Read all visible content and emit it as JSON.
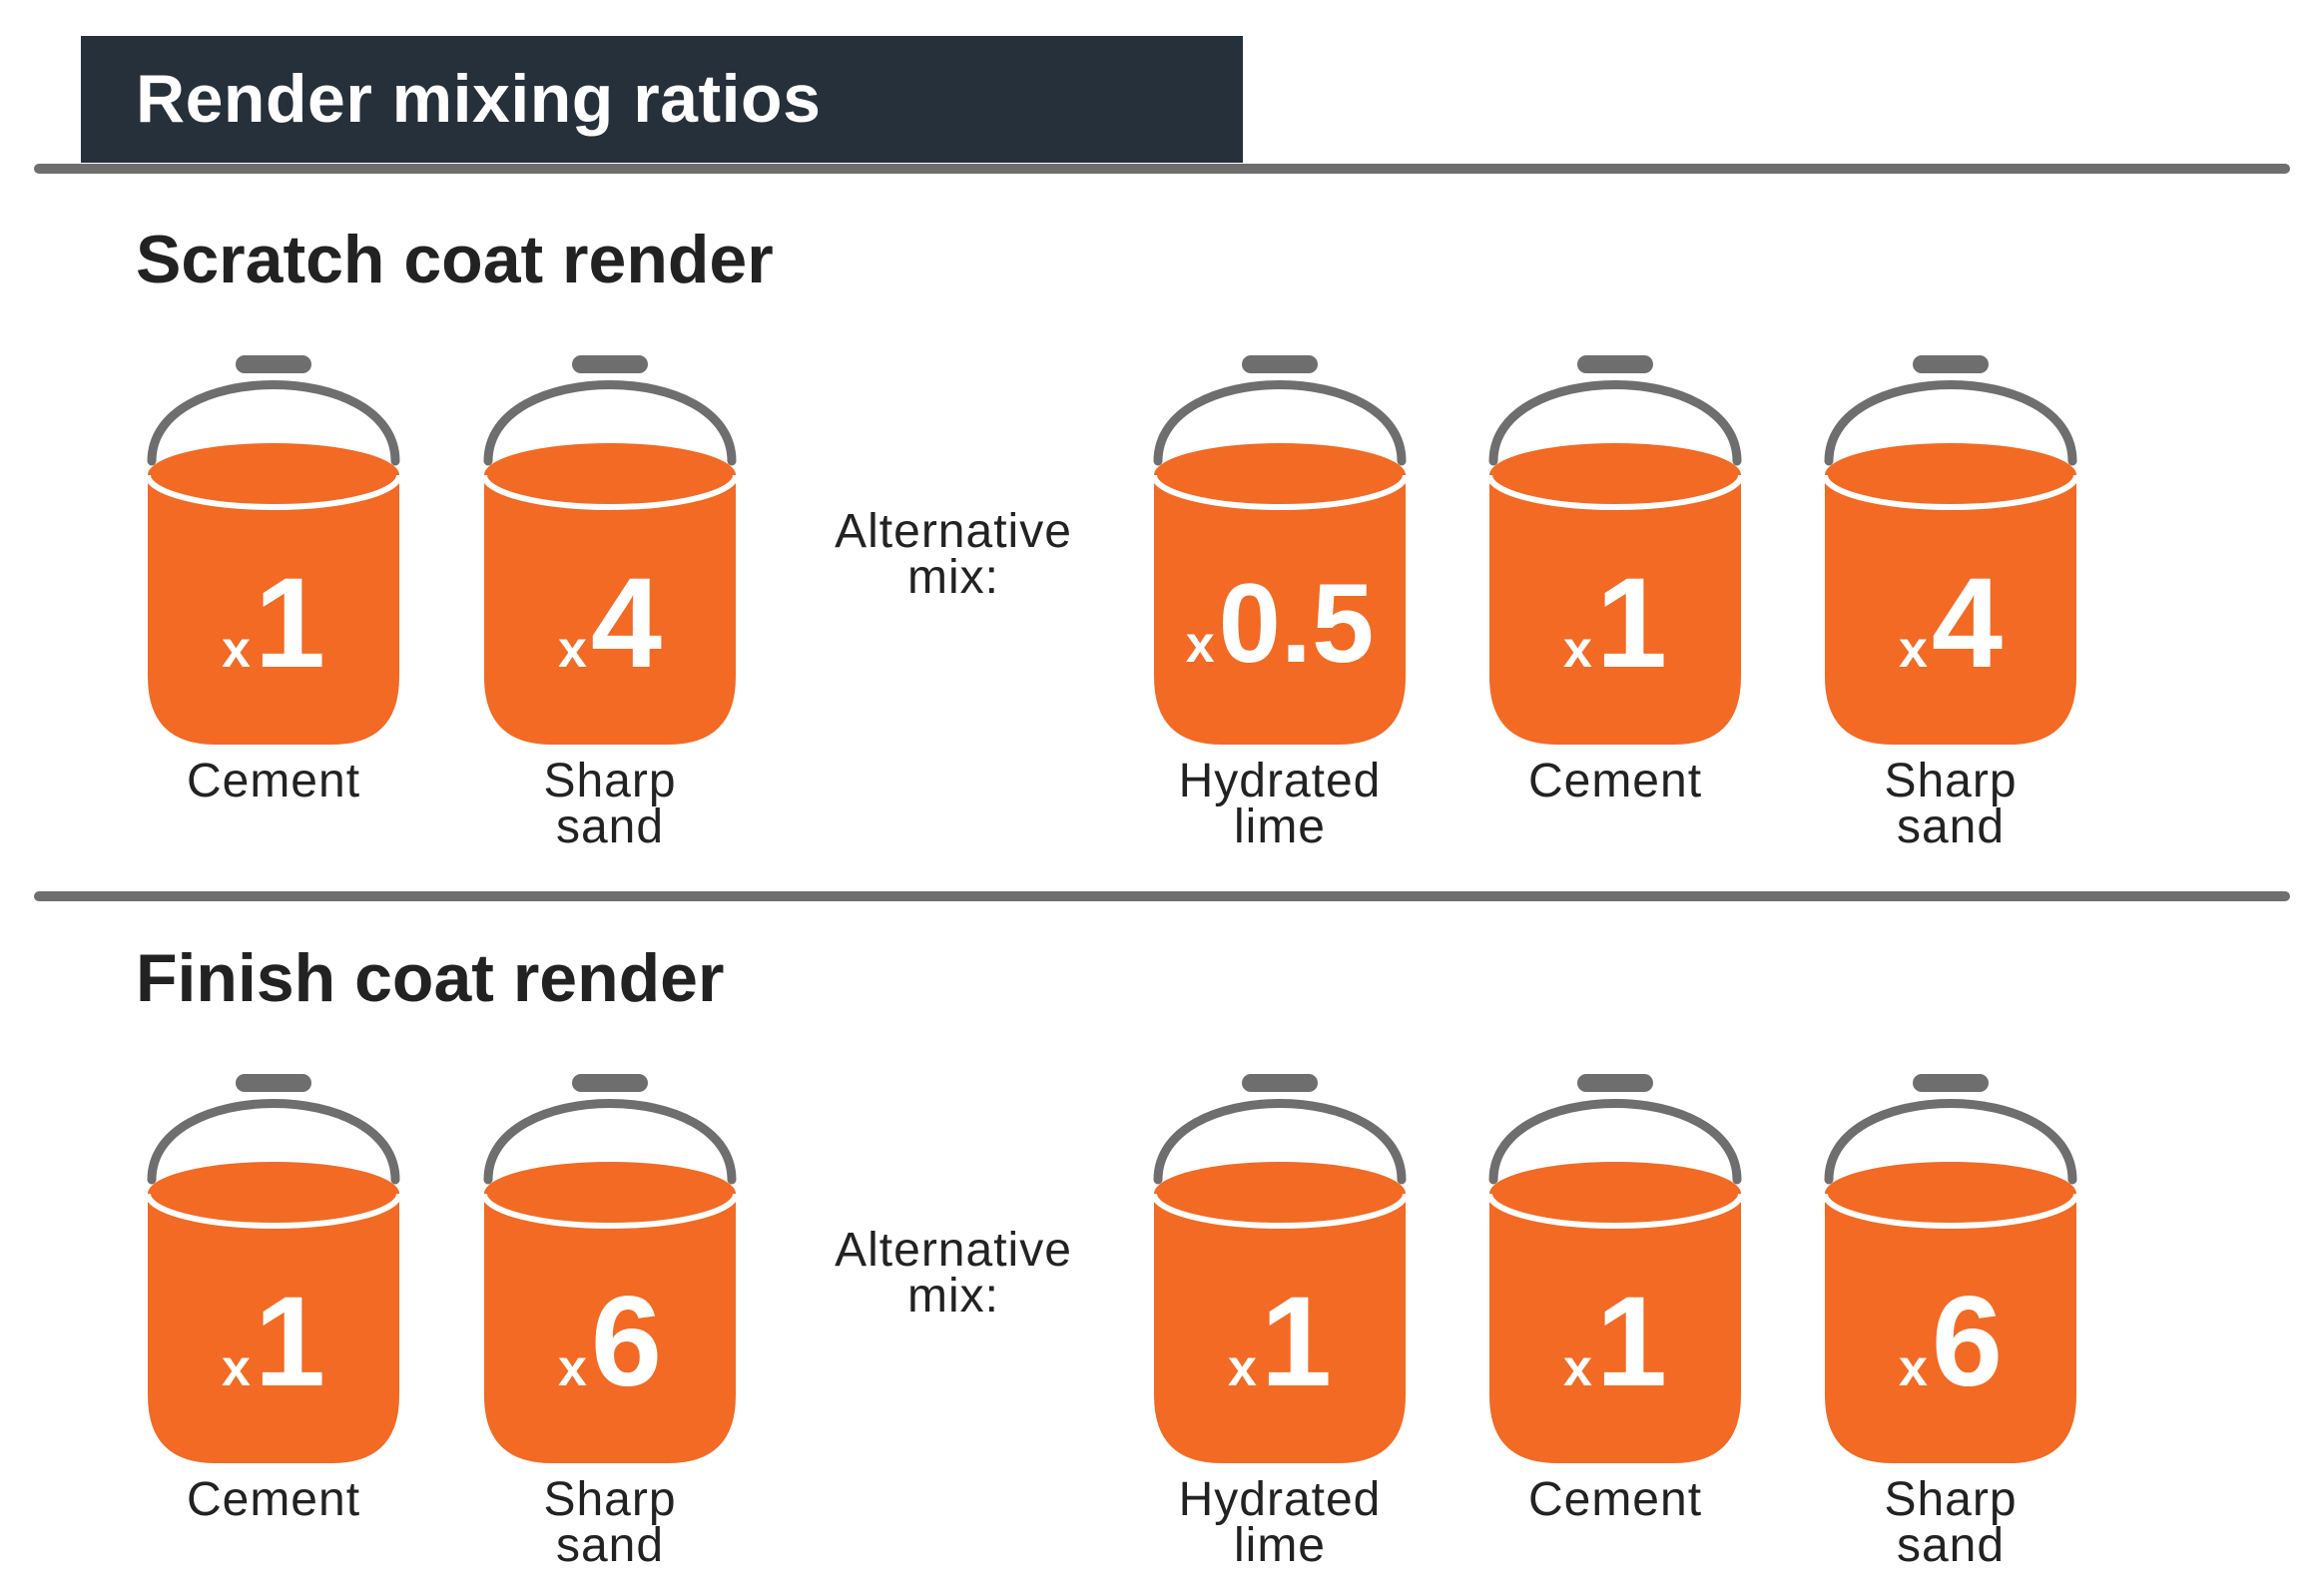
{
  "title": "Render mixing ratios",
  "colors": {
    "bucket": "#f26a24",
    "handle": "#6e6e6e",
    "header": "#26303a"
  },
  "sections": [
    {
      "title": "Scratch coat render",
      "main_mix": [
        {
          "prefix": "x",
          "quantity": "1",
          "label": [
            "Cement"
          ]
        },
        {
          "prefix": "x",
          "quantity": "4",
          "label": [
            "Sharp",
            "sand"
          ]
        }
      ],
      "alternative_label": [
        "Alternative",
        "mix:"
      ],
      "alternative_mix": [
        {
          "prefix": "x",
          "quantity": "0.5",
          "label": [
            "Hydrated",
            "lime"
          ]
        },
        {
          "prefix": "x",
          "quantity": "1",
          "label": [
            "Cement"
          ]
        },
        {
          "prefix": "x",
          "quantity": "4",
          "label": [
            "Sharp",
            "sand"
          ]
        }
      ]
    },
    {
      "title": "Finish coat render",
      "main_mix": [
        {
          "prefix": "x",
          "quantity": "1",
          "label": [
            "Cement"
          ]
        },
        {
          "prefix": "x",
          "quantity": "6",
          "label": [
            "Sharp",
            "sand"
          ]
        }
      ],
      "alternative_label": [
        "Alternative",
        "mix:"
      ],
      "alternative_mix": [
        {
          "prefix": "x",
          "quantity": "1",
          "label": [
            "Hydrated",
            "lime"
          ]
        },
        {
          "prefix": "x",
          "quantity": "1",
          "label": [
            "Cement"
          ]
        },
        {
          "prefix": "x",
          "quantity": "6",
          "label": [
            "Sharp",
            "sand"
          ]
        }
      ]
    }
  ]
}
